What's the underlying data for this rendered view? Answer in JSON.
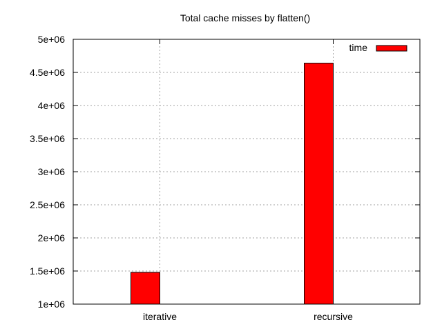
{
  "chart_data": {
    "type": "bar",
    "title": "Total cache misses by flatten()",
    "xlabel": "",
    "ylabel": "",
    "categories": [
      "iterative",
      "recursive"
    ],
    "series": [
      {
        "name": "time",
        "color": "#ff0000",
        "values": [
          1480000,
          4640000
        ]
      }
    ],
    "ylim": [
      1000000,
      5000000
    ],
    "yticks": [
      1000000,
      1500000,
      2000000,
      2500000,
      3000000,
      3500000,
      4000000,
      4500000,
      5000000
    ],
    "ytick_labels": [
      "1e+06",
      "1.5e+06",
      "2e+06",
      "2.5e+06",
      "3e+06",
      "3.5e+06",
      "4e+06",
      "4.5e+06",
      "5e+06"
    ],
    "grid": true,
    "legend": {
      "placement": "top-right",
      "entries": [
        "time"
      ]
    }
  }
}
